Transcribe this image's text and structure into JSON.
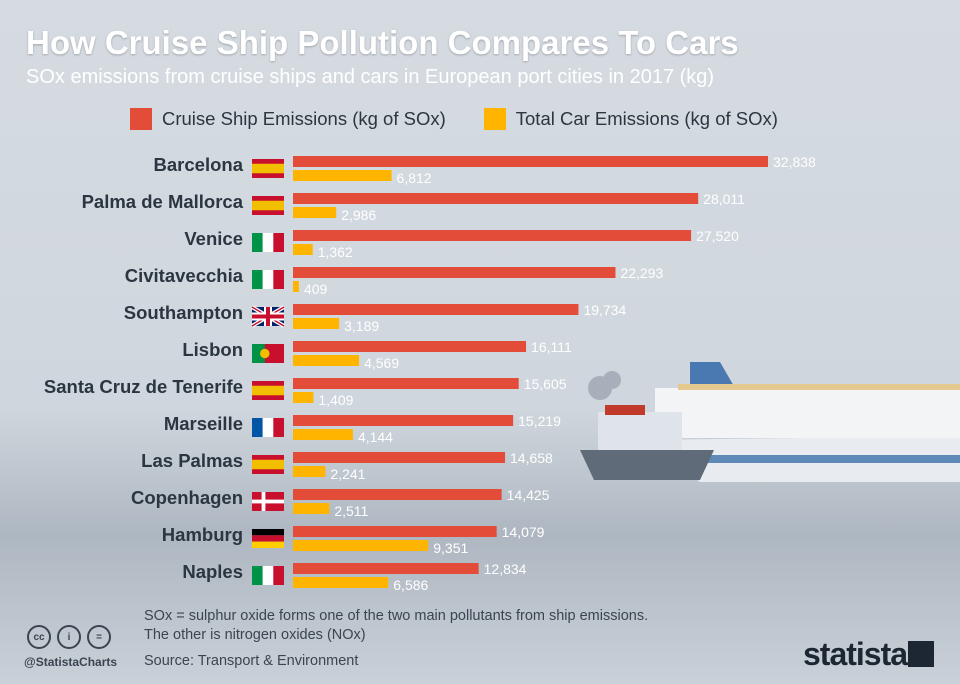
{
  "header": {
    "title": "How Cruise Ship Pollution Compares To Cars",
    "subtitle": "SOx emissions from cruise ships and cars in European port cities in 2017 (kg)"
  },
  "legend": {
    "cruise_label": "Cruise Ship Emissions (kg of SOx)",
    "car_label": "Total Car Emissions (kg of SOx)"
  },
  "colors": {
    "cruise": "#e34c39",
    "car": "#ffb400",
    "flag_red": "#c8102e",
    "flag_yellow": "#f1bf00",
    "flag_green": "#009246",
    "flag_white": "#ffffff",
    "flag_blue": "#0055a4",
    "flag_navy": "#012169",
    "flag_black": "#000000",
    "flag_gold": "#ffce00"
  },
  "chart_data": {
    "type": "bar",
    "orientation": "horizontal",
    "categories": [
      "Barcelona",
      "Palma de Mallorca",
      "Venice",
      "Civitavecchia",
      "Southampton",
      "Lisbon",
      "Santa Cruz de Tenerife",
      "Marseille",
      "Las Palmas",
      "Copenhagen",
      "Hamburg",
      "Naples"
    ],
    "country_flags": [
      "spain-flag-icon",
      "spain-flag-icon",
      "italy-flag-icon",
      "italy-flag-icon",
      "uk-flag-icon",
      "portugal-flag-icon",
      "spain-flag-icon",
      "france-flag-icon",
      "spain-flag-icon",
      "denmark-flag-icon",
      "germany-flag-icon",
      "italy-flag-icon"
    ],
    "series": [
      {
        "name": "Cruise Ship Emissions (kg of SOx)",
        "values": [
          32838,
          28011,
          27520,
          22293,
          19734,
          16111,
          15605,
          15219,
          14658,
          14425,
          14079,
          12834
        ],
        "labels": [
          "32,838",
          "28,011",
          "27,520",
          "22,293",
          "19,734",
          "16,111",
          "15,605",
          "15,219",
          "14,658",
          "14,425",
          "14,079",
          "12,834"
        ]
      },
      {
        "name": "Total Car Emissions (kg of SOx)",
        "values": [
          6812,
          2986,
          1362,
          409,
          3189,
          4569,
          1409,
          4144,
          2241,
          2511,
          9351,
          6586
        ],
        "labels": [
          "6,812",
          "2,986",
          "1,362",
          "409",
          "3,189",
          "4,569",
          "1,409",
          "4,144",
          "2,241",
          "2,511",
          "9,351",
          "6,586"
        ]
      }
    ],
    "xlim": [
      0,
      32838
    ],
    "grid": false,
    "legend_position": "top"
  },
  "footer": {
    "note_line1": "SOx = sulphur oxide forms one of the two main pollutants from ship emissions.",
    "note_line2": "The other is nitrogen oxides (NOx)",
    "source": "Source: Transport & Environment",
    "handle": "@StatistaCharts",
    "brand": "statista",
    "cc_icons": [
      "cc-icon",
      "by-icon",
      "nd-icon"
    ],
    "cc_glyphs": [
      "cc",
      "i",
      "="
    ]
  }
}
